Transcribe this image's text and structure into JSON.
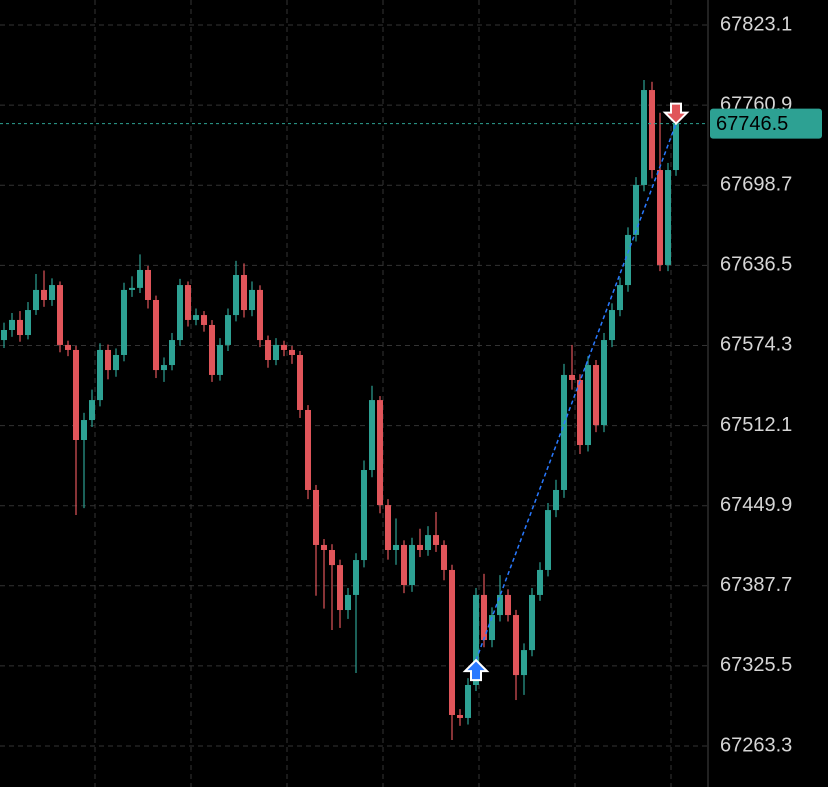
{
  "chart_data": {
    "type": "candlestick",
    "ylim": [
      67231.5,
      67842.5
    ],
    "yticks": [
      67263.3,
      67325.5,
      67387.7,
      67449.9,
      67512.1,
      67574.3,
      67636.5,
      67698.7,
      67760.9,
      67823.1
    ],
    "grid": true,
    "up_color": "#2da193",
    "down_color": "#e0555a",
    "last_price": 67746.5,
    "last_price_color": "#2da193",
    "trades": [
      {
        "side": "buy",
        "index": 59,
        "price": 67330.0,
        "color": "#2979ff"
      },
      {
        "side": "sell",
        "index": 84,
        "price": 67746.5,
        "color": "#e0555a"
      }
    ],
    "trade_line_color": "#2979ff",
    "open": [
      67578.5,
      67586.3,
      67594.1,
      67582.4,
      67601.8,
      67617.4,
      67609.6,
      67621.2,
      67574.7,
      67570.8,
      67500.9,
      67516.4,
      67531.9,
      67570.8,
      67555.2,
      67566.9,
      67617.4,
      67619.0,
      67632.9,
      67609.6,
      67555.2,
      67559.1,
      67578.5,
      67621.2,
      67594.1,
      67597.9,
      67590.2,
      67551.4,
      67574.7,
      67597.9,
      67629.0,
      67601.8,
      67617.4,
      67578.5,
      67563.0,
      67574.7,
      67570.8,
      67566.9,
      67524.2,
      67462.1,
      67419.4,
      67415.5,
      67403.8,
      67368.9,
      67380.6,
      67407.7,
      67477.6,
      67531.9,
      67450.4,
      67415.5,
      67419.4,
      67388.3,
      67419.4,
      67415.5,
      67427.1,
      67419.4,
      67400.0,
      67287.4,
      67285.1,
      67310.7,
      67380.6,
      67345.6,
      67365.0,
      67380.6,
      67365.0,
      67318.4,
      67337.8,
      67380.6,
      67400.0,
      67446.5,
      67462.1,
      67551.4,
      67547.5,
      67497.0,
      67559.1,
      67512.5,
      67578.5,
      67601.8,
      67621.2,
      67660.1,
      67698.9,
      67772.6,
      67710.5,
      67636.8,
      67710.5
    ],
    "high": [
      67592.0,
      67599.5,
      67601.0,
      67608.0,
      67629.8,
      67632.5,
      67626.4,
      67624.0,
      67578.0,
      67574.0,
      67522.0,
      67540.0,
      67576.0,
      67575.0,
      67572.0,
      67623.0,
      67628.0,
      67645.0,
      67636.0,
      67613.0,
      67565.0,
      67584.0,
      67626.0,
      67624.0,
      67603.0,
      67601.0,
      67594.0,
      67580.0,
      67603.0,
      67640.0,
      67638.0,
      67624.0,
      67621.0,
      67582.0,
      67580.0,
      67578.0,
      67574.0,
      67570.0,
      67528.0,
      67466.0,
      67424.0,
      67420.0,
      67408.0,
      67386.0,
      67413.0,
      67485.0,
      67543.0,
      67535.0,
      67455.0,
      67440.0,
      67423.0,
      67425.0,
      67432.0,
      67434.0,
      67445.0,
      67423.0,
      67404.0,
      67292.0,
      67316.0,
      67386.0,
      67397.0,
      67371.0,
      67396.0,
      67385.0,
      67369.0,
      67343.0,
      67386.0,
      67406.0,
      67452.0,
      67470.0,
      67560.0,
      67574.7,
      67552.0,
      67566.0,
      67563.0,
      67584.0,
      67607.0,
      67627.0,
      67666.0,
      67705.0,
      67780.4,
      67779.0,
      67755.0,
      67716.0,
      67752.0
    ],
    "low": [
      67572.3,
      67581.0,
      67577.2,
      67579.0,
      67598.0,
      67604.3,
      67605.0,
      67569.0,
      67566.0,
      67442.7,
      67448.0,
      67511.0,
      67527.0,
      67548.0,
      67550.0,
      67562.0,
      67612.0,
      67615.0,
      67603.0,
      67549.0,
      67546.0,
      67555.0,
      67574.0,
      67589.0,
      67590.0,
      67585.0,
      67546.0,
      67547.0,
      67570.0,
      67593.0,
      67596.0,
      67597.0,
      67573.0,
      67557.0,
      67559.0,
      67566.0,
      67560.0,
      67518.0,
      67455.0,
      67380.0,
      67370.0,
      67353.4,
      67355.0,
      67362.0,
      67320.0,
      67402.0,
      67472.0,
      67444.0,
      67408.0,
      67404.0,
      67382.0,
      67383.0,
      67410.0,
      67411.0,
      67414.0,
      67392.0,
      67268.0,
      67279.0,
      67280.0,
      67306.0,
      67340.0,
      67340.0,
      67360.0,
      67360.0,
      67299.0,
      67303.0,
      67333.0,
      67376.0,
      67395.0,
      67441.0,
      67456.0,
      67540.0,
      67490.0,
      67492.0,
      67507.0,
      67507.0,
      67573.0,
      67597.0,
      67616.0,
      67655.0,
      67694.0,
      67704.0,
      67632.0,
      67632.0,
      67706.0
    ],
    "close": [
      67586.3,
      67594.1,
      67582.4,
      67601.8,
      67617.4,
      67609.6,
      67621.2,
      67574.7,
      67570.8,
      67500.9,
      67516.4,
      67531.9,
      67570.8,
      67555.2,
      67566.9,
      67617.4,
      67619.0,
      67632.9,
      67609.6,
      67555.2,
      67559.1,
      67578.5,
      67621.2,
      67594.1,
      67597.9,
      67590.2,
      67551.4,
      67574.7,
      67597.9,
      67629.0,
      67601.8,
      67617.4,
      67578.5,
      67563.0,
      67574.7,
      67570.8,
      67566.9,
      67524.2,
      67462.1,
      67419.4,
      67415.5,
      67403.8,
      67368.9,
      67380.6,
      67407.7,
      67477.6,
      67531.9,
      67450.4,
      67415.5,
      67419.4,
      67388.3,
      67419.4,
      67415.5,
      67427.1,
      67419.4,
      67400.0,
      67287.4,
      67285.1,
      67310.7,
      67380.6,
      67345.6,
      67365.0,
      67380.6,
      67365.0,
      67318.4,
      67337.8,
      67380.6,
      67400.0,
      67446.5,
      67462.1,
      67551.4,
      67547.5,
      67497.0,
      67559.1,
      67512.5,
      67578.5,
      67601.8,
      67621.2,
      67660.1,
      67698.9,
      67772.6,
      67710.5,
      67636.8,
      67710.5,
      67746.5
    ]
  }
}
